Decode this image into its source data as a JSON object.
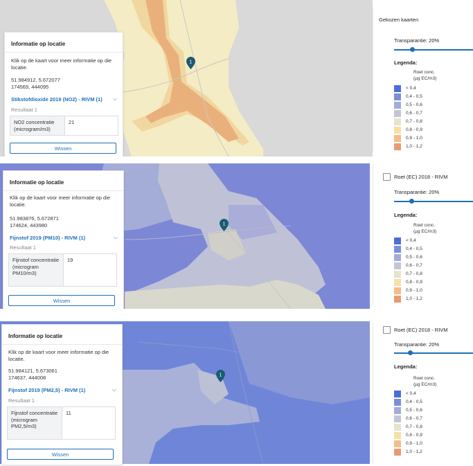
{
  "panels": [
    {
      "info": {
        "title": "Informatie op locatie",
        "description": "Klik op de kaart voor meer informatie op die locatie.",
        "coord_latlon": "51.984912, 5.672077",
        "coord_rd": "174569, 444095",
        "layer": "Stikstofdioxide 2019 (NO2) - RIVM (1)",
        "result": "Resultaat 1",
        "key": "NO2 concentratie (microgram/m3)",
        "value": "21",
        "clear_label": "Wissen"
      },
      "sidebar": {
        "title": "Gekozen kaarten",
        "layer_name": "",
        "transparency": "Transparantie: 20%",
        "legend_title": "Legenda:",
        "legend_unit_1": "Roet conc.",
        "legend_unit_2": "(µg EC/m3)"
      }
    },
    {
      "info": {
        "title": "Informatie op locatie",
        "description": "Klik op de kaart voor meer informatie op die locatie.",
        "coord_latlon": "51.983876, 5.672871",
        "coord_rd": "174624, 443980",
        "layer": "Fijnstof 2019 (PM10) - RIVM (1)",
        "result": "Resultaat 1",
        "key": "Fijnstof concentratie (microgram PM10/m3)",
        "value": "19",
        "clear_label": "Wissen"
      },
      "sidebar": {
        "title": "",
        "layer_name": "Roet (EC) 2018 - RIVM",
        "transparency": "Transparantie: 20%",
        "legend_title": "Legenda:",
        "legend_unit_1": "Roet conc.",
        "legend_unit_2": "(µg EC/m3)"
      }
    },
    {
      "info": {
        "title": "Informatie op locatie",
        "description": "Klik op de kaart voor meer informatie op die locatie.",
        "coord_latlon": "51.984121, 5.673061",
        "coord_rd": "174637, 444008",
        "layer": "Fijnstof 2019 (PM2,5) - RIVM (1)",
        "result": "Resultaat 1",
        "key": "Fijnstof concentratie (microgram PM2,5/m3)",
        "value": "11",
        "clear_label": "Wissen"
      },
      "sidebar": {
        "title": "",
        "layer_name": "Roet (EC) 2018 - RIVM",
        "transparency": "Transparantie: 20%",
        "legend_title": "Legenda:",
        "legend_unit_1": "Roet conc.",
        "legend_unit_2": "(µg EC/m3)"
      }
    }
  ],
  "legend": [
    {
      "label": "< 0,4",
      "color": "#4a6fd6"
    },
    {
      "label": "0,4 - 0,5",
      "color": "#7a8fd8"
    },
    {
      "label": "0,5 - 0,6",
      "color": "#a3abd8"
    },
    {
      "label": "0,6 - 0,7",
      "color": "#c3c6d4"
    },
    {
      "label": "0,7 - 0,8",
      "color": "#e6e4cc"
    },
    {
      "label": "0,8 - 0,9",
      "color": "#f6e0a6"
    },
    {
      "label": "0,9 - 1,0",
      "color": "#f2be8a"
    },
    {
      "label": "1,0 - 1,2",
      "color": "#e89a72"
    }
  ],
  "colors": {
    "accent": "#1f6fb5",
    "marker": "#1c5a73"
  },
  "icons": {
    "marker": "map-marker-icon",
    "expand": "chevron-down-icon"
  }
}
